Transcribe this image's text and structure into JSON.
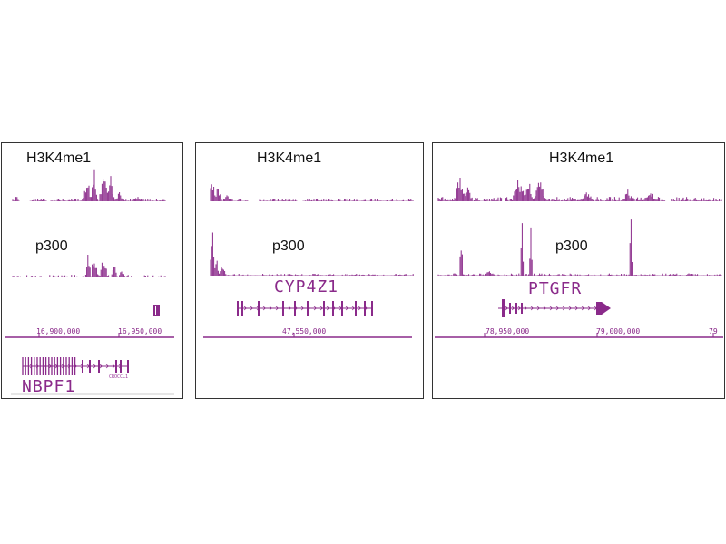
{
  "colors": {
    "signal": "#8a2a8a",
    "border": "#333333",
    "gene": "#8a2a8a"
  },
  "panels": [
    {
      "track1_label": "H3K4me1",
      "track2_label": "p300",
      "gene_label": "NBPF1",
      "coords": [
        "16,900,000",
        "16,950,000"
      ],
      "small_label": "CROCCL1"
    },
    {
      "track1_label": "H3K4me1",
      "track2_label": "p300",
      "gene_label": "CYP4Z1",
      "coords": [
        "47,550,000"
      ]
    },
    {
      "track1_label": "H3K4me1",
      "track2_label": "p300",
      "gene_label": "PTGFR",
      "coords": [
        "78,950,000",
        "79,000,000",
        "79"
      ]
    }
  ]
}
